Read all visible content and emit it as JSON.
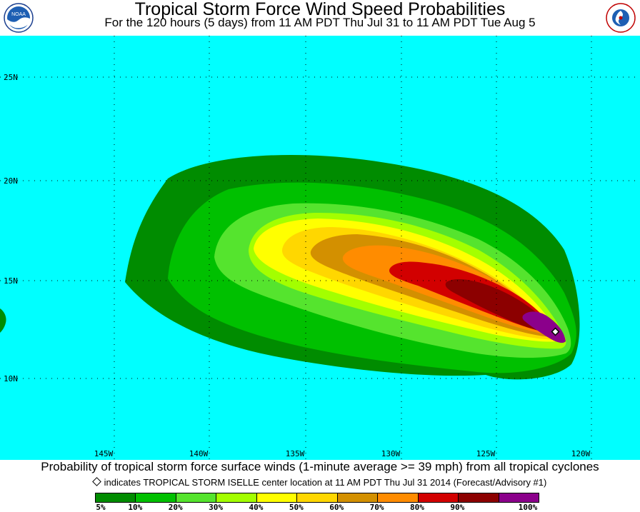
{
  "title": "Tropical Storm Force Wind Speed Probabilities",
  "subtitle": "For the 120 hours (5 days) from 11 AM PDT Thu Jul 31 to 11 AM PDT Tue Aug 5",
  "logos": {
    "left_text": "NOAA",
    "right_text": "NATIONAL WEATHER SERVICE"
  },
  "map": {
    "ocean_color": "#00ffff",
    "grid_color": "#000000",
    "latitude_labels": [
      "25N",
      "20N",
      "15N",
      "10N"
    ],
    "longitude_labels": [
      "145W",
      "140W",
      "135W",
      "130W",
      "125W",
      "120W"
    ],
    "storm_marker": {
      "name": "TROPICAL STORM ISELLE",
      "icon": "diamond-marker-icon"
    }
  },
  "caption": "Probability of tropical storm force surface winds (1-minute average >= 39 mph) from all tropical cyclones",
  "marker_note": "indicates TROPICAL STORM ISELLE center location at 11 AM PDT Thu Jul 31 2014 (Forecast/Advisory #1)",
  "legend": {
    "colors": [
      "#008c00",
      "#00c000",
      "#55e42e",
      "#a3ff00",
      "#ffff00",
      "#ffd700",
      "#d39000",
      "#ff8c00",
      "#d20000",
      "#8c0000",
      "#8b008b"
    ],
    "labels": [
      "5%",
      "10%",
      "20%",
      "30%",
      "40%",
      "50%",
      "60%",
      "70%",
      "80%",
      "90%",
      "100%"
    ]
  }
}
